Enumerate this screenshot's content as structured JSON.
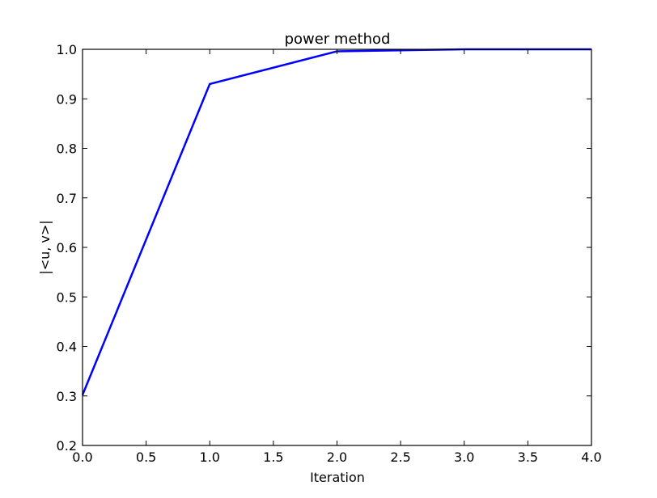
{
  "chart_data": {
    "type": "line",
    "title": "power method",
    "xlabel": "Iteration",
    "ylabel": "|<u, v>|",
    "xlim": [
      0,
      4
    ],
    "ylim": [
      0.2,
      1.0
    ],
    "xticks": [
      0.0,
      0.5,
      1.0,
      1.5,
      2.0,
      2.5,
      3.0,
      3.5,
      4.0
    ],
    "yticks": [
      0.2,
      0.3,
      0.4,
      0.5,
      0.6,
      0.7,
      0.8,
      0.9,
      1.0
    ],
    "xtick_labels": [
      "0.0",
      "0.5",
      "1.0",
      "1.5",
      "2.0",
      "2.5",
      "3.0",
      "3.5",
      "4.0"
    ],
    "ytick_labels": [
      "0.2",
      "0.3",
      "0.4",
      "0.5",
      "0.6",
      "0.7",
      "0.8",
      "0.9",
      "1.0"
    ],
    "grid": false,
    "series": [
      {
        "color": "#0000ff",
        "x": [
          0,
          1,
          2,
          3,
          4
        ],
        "y": [
          0.302,
          0.93,
          0.996,
          1.0,
          1.0
        ]
      }
    ]
  }
}
